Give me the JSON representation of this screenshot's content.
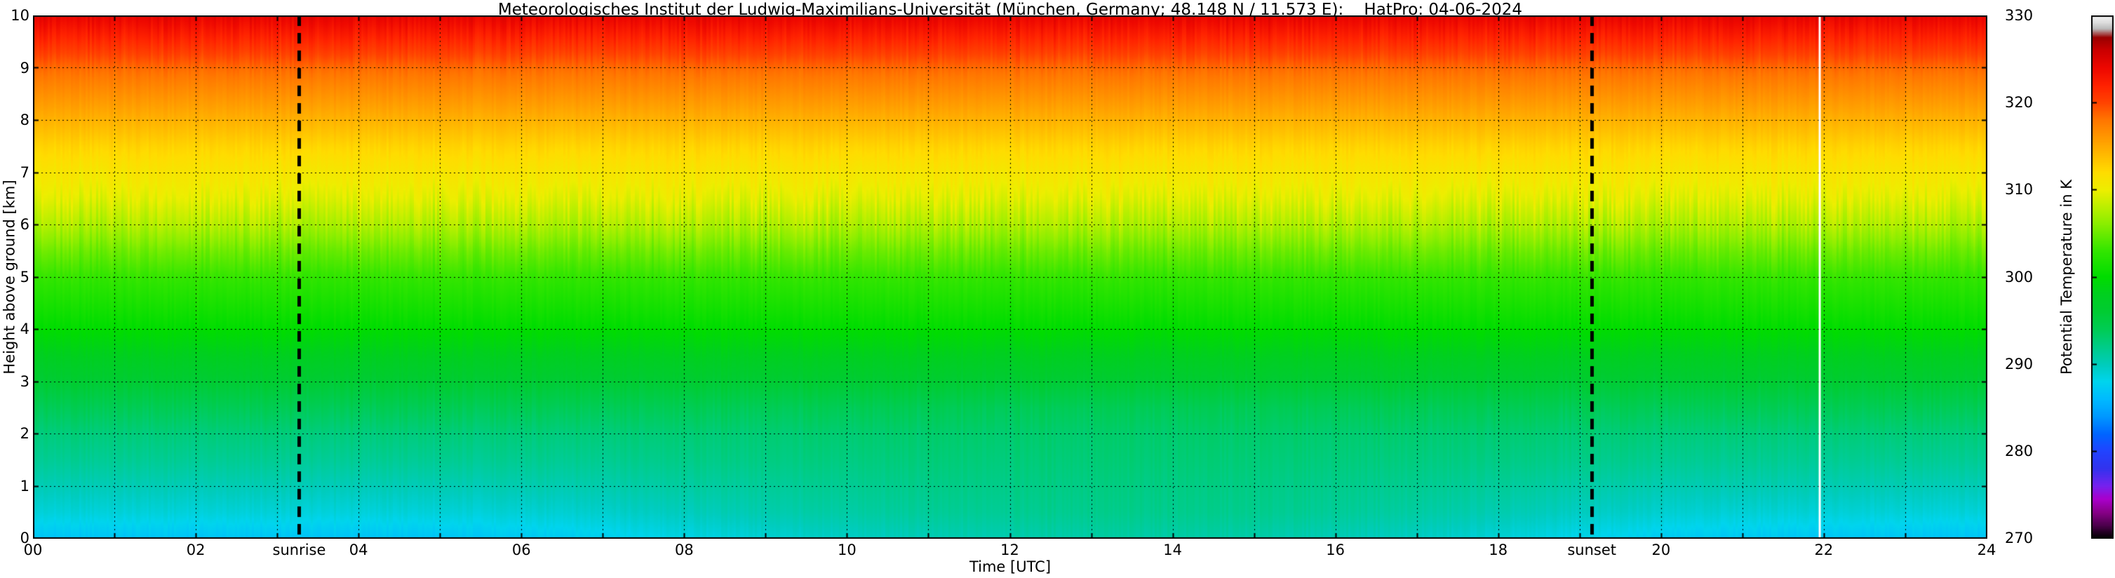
{
  "chart_data": {
    "type": "heatmap",
    "title": "Meteorologisches Institut der Ludwig-Maximilians-Universität (München, Germany; 48.148 N / 11.573 E):    HatPro: 04-06-2024",
    "xlabel": "Time [UTC]",
    "ylabel": "Height above ground [km]",
    "colorbar_label": "Potential Temperature in K",
    "x_range": [
      0,
      24
    ],
    "y_range": [
      0,
      10
    ],
    "colorbar_range": [
      270,
      330
    ],
    "x_ticks": {
      "values": [
        0,
        2,
        4,
        6,
        8,
        10,
        12,
        14,
        16,
        18,
        20,
        22,
        24
      ],
      "labels": [
        "00",
        "02",
        "04",
        "06",
        "08",
        "10",
        "12",
        "14",
        "16",
        "18",
        "20",
        "22",
        "24"
      ]
    },
    "y_ticks": {
      "values": [
        0,
        1,
        2,
        3,
        4,
        5,
        6,
        7,
        8,
        9,
        10
      ],
      "labels": [
        "0",
        "1",
        "2",
        "3",
        "4",
        "5",
        "6",
        "7",
        "8",
        "9",
        "10"
      ]
    },
    "colorbar_ticks": [
      270,
      280,
      290,
      300,
      310,
      320,
      330
    ],
    "grid": {
      "x_step": 1,
      "y_step": 1
    },
    "markers": [
      {
        "label": "sunrise",
        "time": 3.27
      },
      {
        "label": "sunset",
        "time": 19.15
      }
    ],
    "data_gaps": [
      21.95
    ],
    "colormap": [
      [
        270,
        "#000000"
      ],
      [
        271.5,
        "#4d004d"
      ],
      [
        273,
        "#880088"
      ],
      [
        274.5,
        "#aa00cc"
      ],
      [
        276,
        "#7722ee"
      ],
      [
        278,
        "#3333ee"
      ],
      [
        280,
        "#2244ff"
      ],
      [
        282,
        "#0066ff"
      ],
      [
        284,
        "#0099ff"
      ],
      [
        286,
        "#00bbff"
      ],
      [
        288,
        "#00d5ee"
      ],
      [
        290,
        "#00ccbb"
      ],
      [
        292,
        "#00cc88"
      ],
      [
        294,
        "#00cc55"
      ],
      [
        296,
        "#00cc33"
      ],
      [
        298,
        "#00d020"
      ],
      [
        300,
        "#00dd00"
      ],
      [
        303,
        "#33e600"
      ],
      [
        306,
        "#88ee00"
      ],
      [
        308,
        "#bbf000"
      ],
      [
        310,
        "#eeee00"
      ],
      [
        312,
        "#ffdd00"
      ],
      [
        314,
        "#ffbb00"
      ],
      [
        316,
        "#ff9900"
      ],
      [
        318,
        "#ff7700"
      ],
      [
        320,
        "#ff4400"
      ],
      [
        322,
        "#ff2200"
      ],
      [
        324,
        "#ee0800"
      ],
      [
        326,
        "#cc0000"
      ],
      [
        327.5,
        "#990000"
      ],
      [
        328.5,
        "#bbbbbb"
      ],
      [
        329.2,
        "#dddddd"
      ],
      [
        330,
        "#f5f5f5"
      ]
    ],
    "times": [
      0,
      1,
      2,
      3,
      4,
      5,
      6,
      7,
      8,
      9,
      10,
      11,
      12,
      13,
      14,
      15,
      16,
      17,
      18,
      19,
      20,
      21,
      22,
      23,
      24
    ],
    "heights": [
      0,
      0.5,
      1,
      1.5,
      2,
      2.5,
      3,
      3.5,
      4,
      4.5,
      5,
      5.5,
      6,
      6.5,
      7,
      7.5,
      8,
      8.5,
      9,
      9.5,
      10
    ],
    "values": [
      [
        286.8,
        286.8,
        286.8,
        286.8,
        286.8,
        286.8,
        287.1,
        287.6,
        288.3,
        289.0,
        289.6,
        290.1,
        290.5,
        290.8,
        290.8,
        290.6,
        290.2,
        289.6,
        288.8,
        288.0,
        287.4,
        287.1,
        286.9,
        286.8,
        286.8
      ],
      [
        288.8,
        288.8,
        288.8,
        288.8,
        288.8,
        288.8,
        289.0,
        289.4,
        289.9,
        290.5,
        290.9,
        291.3,
        291.6,
        291.8,
        291.8,
        291.7,
        291.4,
        290.9,
        290.3,
        289.7,
        289.3,
        289.0,
        288.9,
        288.8,
        288.8
      ],
      [
        290.2,
        290.2,
        290.2,
        290.2,
        290.2,
        290.2,
        290.4,
        290.6,
        291.0,
        291.3,
        291.6,
        291.9,
        292.1,
        292.2,
        292.2,
        292.1,
        291.9,
        291.6,
        291.2,
        290.8,
        290.5,
        290.4,
        290.3,
        290.2,
        290.2
      ],
      [
        291.5,
        291.5,
        291.5,
        291.5,
        291.5,
        291.5,
        291.6,
        291.7,
        292.0,
        292.2,
        292.3,
        292.5,
        292.6,
        292.7,
        292.7,
        292.6,
        292.5,
        292.3,
        292.1,
        291.9,
        291.7,
        291.6,
        291.5,
        291.5,
        291.5
      ],
      [
        292.5,
        292.5,
        292.5,
        292.5,
        292.5,
        292.5,
        292.5,
        292.6,
        292.7,
        292.8,
        292.9,
        293.0,
        293.1,
        293.1,
        293.1,
        293.1,
        293.0,
        292.9,
        292.8,
        292.7,
        292.6,
        292.5,
        292.5,
        292.5,
        292.5
      ],
      294,
      296,
      298,
      300,
      301.5,
      303,
      305,
      307.5,
      309.5,
      311,
      312.5,
      314.5,
      316.5,
      318.5,
      321.5,
      324.5
    ]
  }
}
